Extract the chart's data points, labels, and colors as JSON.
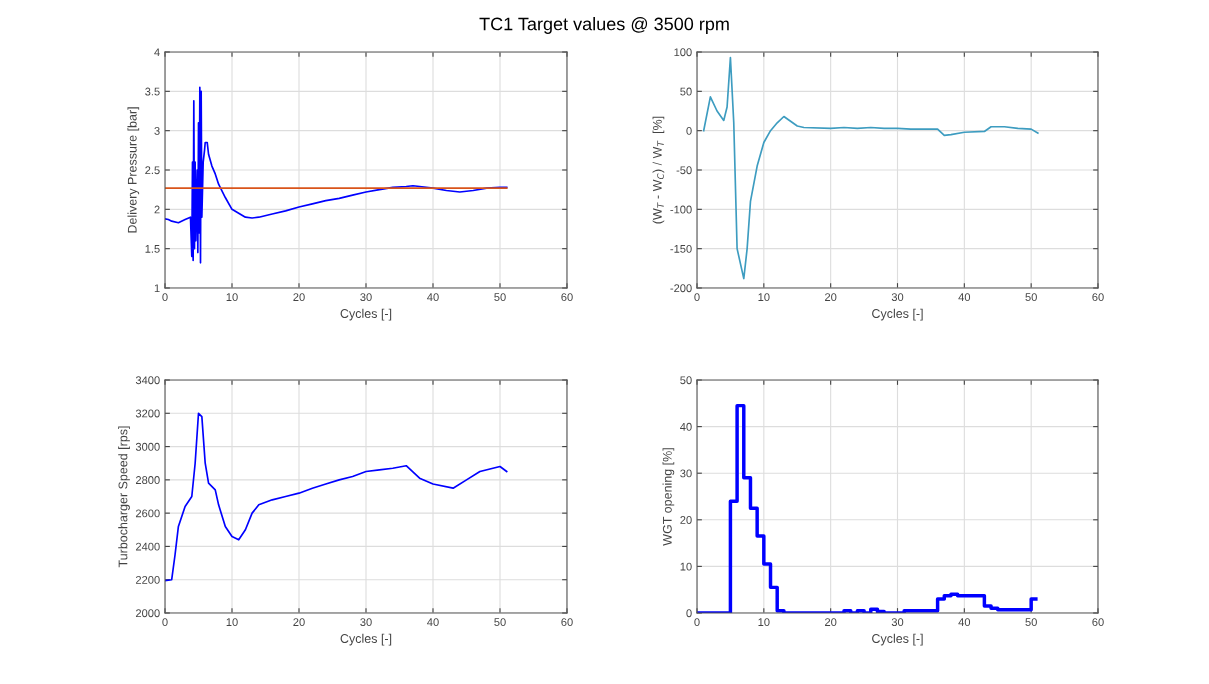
{
  "chart_data": [
    {
      "type": "line",
      "title": "TC1 Target values @ 3500 rpm",
      "xlabel": "Cycles [-]",
      "ylabel": "Delivery Pressure [bar]",
      "xlim": [
        0,
        60
      ],
      "xticks": [
        0,
        10,
        20,
        30,
        40,
        50,
        60
      ],
      "ylim": [
        1,
        4
      ],
      "yticks": [
        1,
        1.5,
        2,
        2.5,
        3,
        3.5,
        4
      ],
      "grid": true,
      "series": [
        {
          "color": "#0000ff",
          "x": [
            0,
            0.5,
            1,
            2,
            3,
            3.8,
            4.0,
            4.1,
            4.2,
            4.3,
            4.4,
            4.5,
            4.6,
            4.8,
            4.9,
            5.0,
            5.1,
            5.2,
            5.3,
            5.4,
            5.5,
            5.7,
            5.9,
            6.0,
            6.3,
            6.5,
            7,
            7.5,
            8,
            9,
            10,
            11,
            12,
            13,
            14,
            16,
            18,
            20,
            22,
            24,
            26,
            28,
            30,
            32,
            34,
            36,
            37,
            38,
            40,
            42,
            44,
            46,
            48,
            50,
            51
          ],
          "values": [
            1.88,
            1.87,
            1.85,
            1.83,
            1.87,
            1.9,
            1.4,
            2.6,
            1.35,
            3.38,
            1.5,
            2.6,
            1.6,
            2.5,
            1.45,
            3.1,
            1.7,
            3.55,
            1.32,
            3.5,
            1.9,
            2.6,
            2.75,
            2.85,
            2.85,
            2.7,
            2.55,
            2.45,
            2.32,
            2.15,
            2.0,
            1.95,
            1.9,
            1.89,
            1.9,
            1.94,
            1.98,
            2.03,
            2.07,
            2.11,
            2.14,
            2.18,
            2.22,
            2.25,
            2.28,
            2.29,
            2.3,
            2.29,
            2.27,
            2.24,
            2.22,
            2.24,
            2.27,
            2.28,
            2.28
          ]
        },
        {
          "color": "#d9541a",
          "x": [
            0,
            51
          ],
          "values": [
            2.27,
            2.27
          ]
        }
      ]
    },
    {
      "type": "line",
      "xlabel": "Cycles [-]",
      "ylabel": "(W$_{T}$ - W$_{C}$) / W$_{T}$  [%]",
      "xlim": [
        0,
        60
      ],
      "xticks": [
        0,
        10,
        20,
        30,
        40,
        50,
        60
      ],
      "ylim": [
        -200,
        100
      ],
      "yticks": [
        -200,
        -150,
        -100,
        -50,
        0,
        50,
        100
      ],
      "grid": true,
      "series": [
        {
          "color": "#3d9cc0",
          "x": [
            1,
            2,
            3,
            4,
            4.5,
            5,
            5.5,
            6,
            7,
            7.5,
            8,
            9,
            10,
            11,
            12,
            13,
            14,
            15,
            16,
            20,
            22,
            24,
            26,
            28,
            30,
            32,
            34,
            36,
            37,
            38,
            40,
            43,
            44,
            46,
            48,
            50,
            51
          ],
          "values": [
            0,
            43,
            25,
            13,
            30,
            93,
            10,
            -150,
            -188,
            -150,
            -90,
            -45,
            -15,
            0,
            10,
            18,
            12,
            6,
            4,
            3,
            4,
            3,
            4,
            3,
            3,
            2,
            2,
            2,
            -6,
            -5,
            -2,
            -1,
            5,
            5,
            3,
            2,
            -3
          ]
        }
      ]
    },
    {
      "type": "line",
      "xlabel": "Cycles [-]",
      "ylabel": "Turbocharger Speed [rps]",
      "xlim": [
        0,
        60
      ],
      "xticks": [
        0,
        10,
        20,
        30,
        40,
        50,
        60
      ],
      "ylim": [
        2000,
        3400
      ],
      "yticks": [
        2000,
        2200,
        2400,
        2600,
        2800,
        3000,
        3200,
        3400
      ],
      "grid": true,
      "series": [
        {
          "color": "#0000ff",
          "x": [
            0,
            1,
            1.5,
            2,
            3,
            4,
            4.5,
            5,
            5.5,
            6,
            6.5,
            7.5,
            8,
            9,
            10,
            11,
            12,
            13,
            14,
            16,
            18,
            20,
            22,
            24,
            26,
            28,
            30,
            32,
            34,
            36,
            38,
            40,
            43,
            45,
            47,
            50,
            51
          ],
          "values": [
            2195,
            2200,
            2350,
            2520,
            2640,
            2700,
            2900,
            3200,
            3180,
            2900,
            2780,
            2740,
            2650,
            2520,
            2460,
            2440,
            2500,
            2600,
            2650,
            2680,
            2700,
            2720,
            2750,
            2775,
            2800,
            2820,
            2850,
            2860,
            2870,
            2885,
            2810,
            2775,
            2750,
            2800,
            2850,
            2880,
            2850
          ]
        }
      ]
    },
    {
      "type": "step",
      "xlabel": "Cycles [-]",
      "ylabel": "WGT opening [%]",
      "xlim": [
        0,
        60
      ],
      "xticks": [
        0,
        10,
        20,
        30,
        40,
        50,
        60
      ],
      "ylim": [
        0,
        50
      ],
      "yticks": [
        0,
        10,
        20,
        30,
        40,
        50
      ],
      "grid": true,
      "series": [
        {
          "color": "#0000ff",
          "x": [
            0,
            5,
            6,
            7,
            8,
            9,
            10,
            11,
            12,
            13,
            22,
            23,
            24,
            25,
            26,
            27,
            28,
            31,
            36,
            37,
            38,
            39,
            43,
            44,
            45,
            50,
            50.7
          ],
          "values": [
            0,
            24,
            44.5,
            29,
            22.5,
            16.5,
            10.5,
            5.5,
            0.5,
            0,
            0.5,
            0,
            0.5,
            0,
            0.8,
            0.3,
            0,
            0.5,
            3,
            3.7,
            4,
            3.7,
            1.5,
            1,
            0.7,
            3,
            3
          ]
        }
      ]
    }
  ]
}
